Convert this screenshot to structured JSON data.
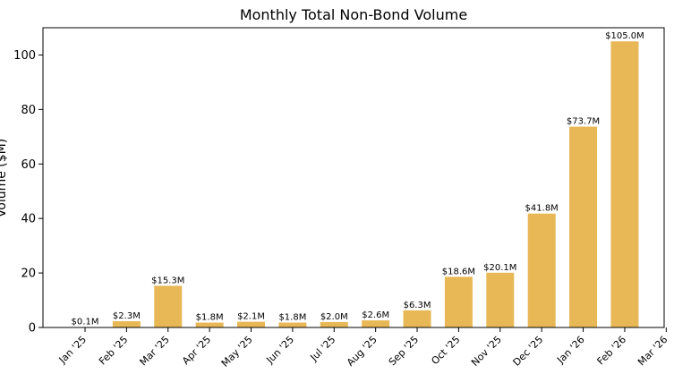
{
  "chart_data": {
    "type": "bar",
    "title": "Monthly Total Non-Bond Volume",
    "ylabel": "Volume ($M)",
    "xlabel": "",
    "ylim": [
      0,
      110
    ],
    "yticks": [
      0,
      20,
      40,
      60,
      80,
      100
    ],
    "bar_color": "#e8b857",
    "grid": false,
    "ticks": [
      "Jan '25",
      "Feb '25",
      "Mar '25",
      "Apr '25",
      "May '25",
      "Jun '25",
      "Jul '25",
      "Aug '25",
      "Sep '25",
      "Oct '25",
      "Nov '25",
      "Dec '25",
      "Jan '26",
      "Feb '26",
      "Mar '26"
    ],
    "bars": [
      {
        "x": "Jan '25",
        "y": 0.1,
        "label": "$0.1M"
      },
      {
        "x": "Feb '25",
        "y": 2.3,
        "label": "$2.3M"
      },
      {
        "x": "Mar '25",
        "y": 15.3,
        "label": "$15.3M"
      },
      {
        "x": "Apr '25",
        "y": 1.8,
        "label": "$1.8M"
      },
      {
        "x": "May '25",
        "y": 2.1,
        "label": "$2.1M"
      },
      {
        "x": "Jun '25",
        "y": 1.8,
        "label": "$1.8M"
      },
      {
        "x": "Jul '25",
        "y": 2.0,
        "label": "$2.0M"
      },
      {
        "x": "Aug '25",
        "y": 2.6,
        "label": "$2.6M"
      },
      {
        "x": "Sep '25",
        "y": 6.3,
        "label": "$6.3M"
      },
      {
        "x": "Oct '25",
        "y": 18.6,
        "label": "$18.6M"
      },
      {
        "x": "Nov '25",
        "y": 20.1,
        "label": "$20.1M"
      },
      {
        "x": "Dec '25",
        "y": 41.8,
        "label": "$41.8M"
      },
      {
        "x": "Jan '26",
        "y": 73.7,
        "label": "$73.7M"
      },
      {
        "x": "Feb '26",
        "y": 105.0,
        "label": "$105.0M"
      }
    ]
  }
}
